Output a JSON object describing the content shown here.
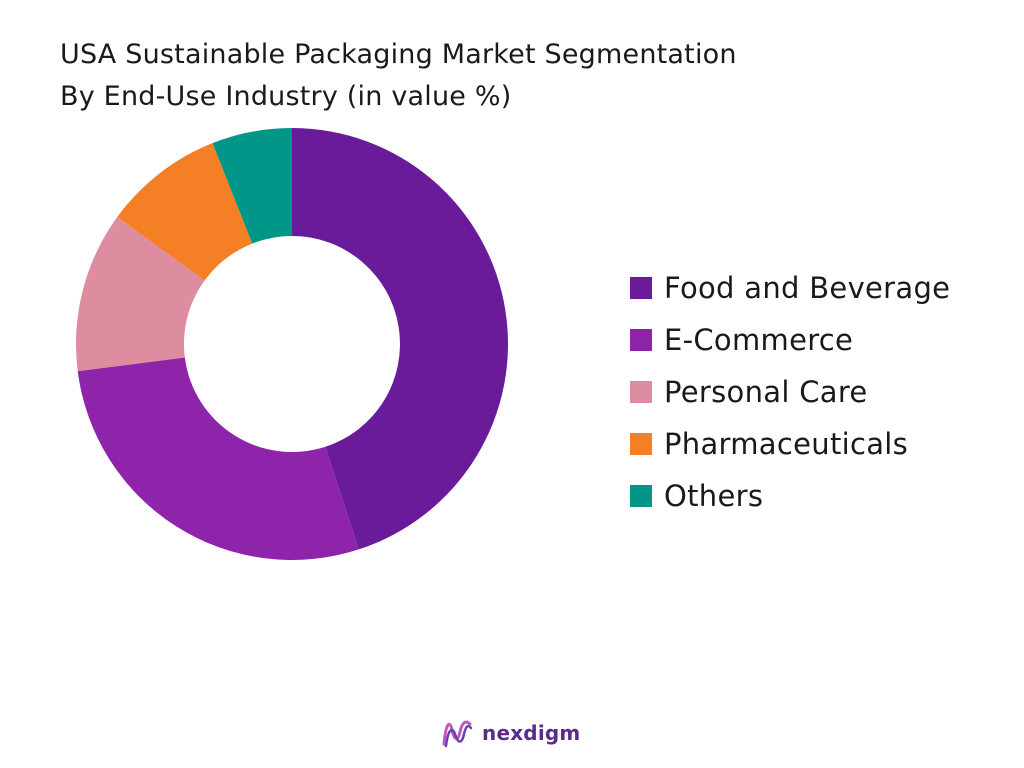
{
  "chart_data": {
    "type": "pie",
    "title_lines": [
      "USA Sustainable Packaging Market Segmentation",
      "By End-Use Industry (in value %)"
    ],
    "categories": [
      "Food and Beverage",
      "E-Commerce",
      "Personal Care",
      "Pharmaceuticals",
      "Others"
    ],
    "values": [
      45,
      28,
      12,
      9,
      6
    ],
    "colors": [
      "#6a1b9a",
      "#8e24aa",
      "#de8ca0",
      "#f57f24",
      "#009688"
    ],
    "legend_position": "right",
    "donut": true
  },
  "brand": {
    "name": "nexdigm",
    "logo_icon": "wave-n-logo"
  }
}
